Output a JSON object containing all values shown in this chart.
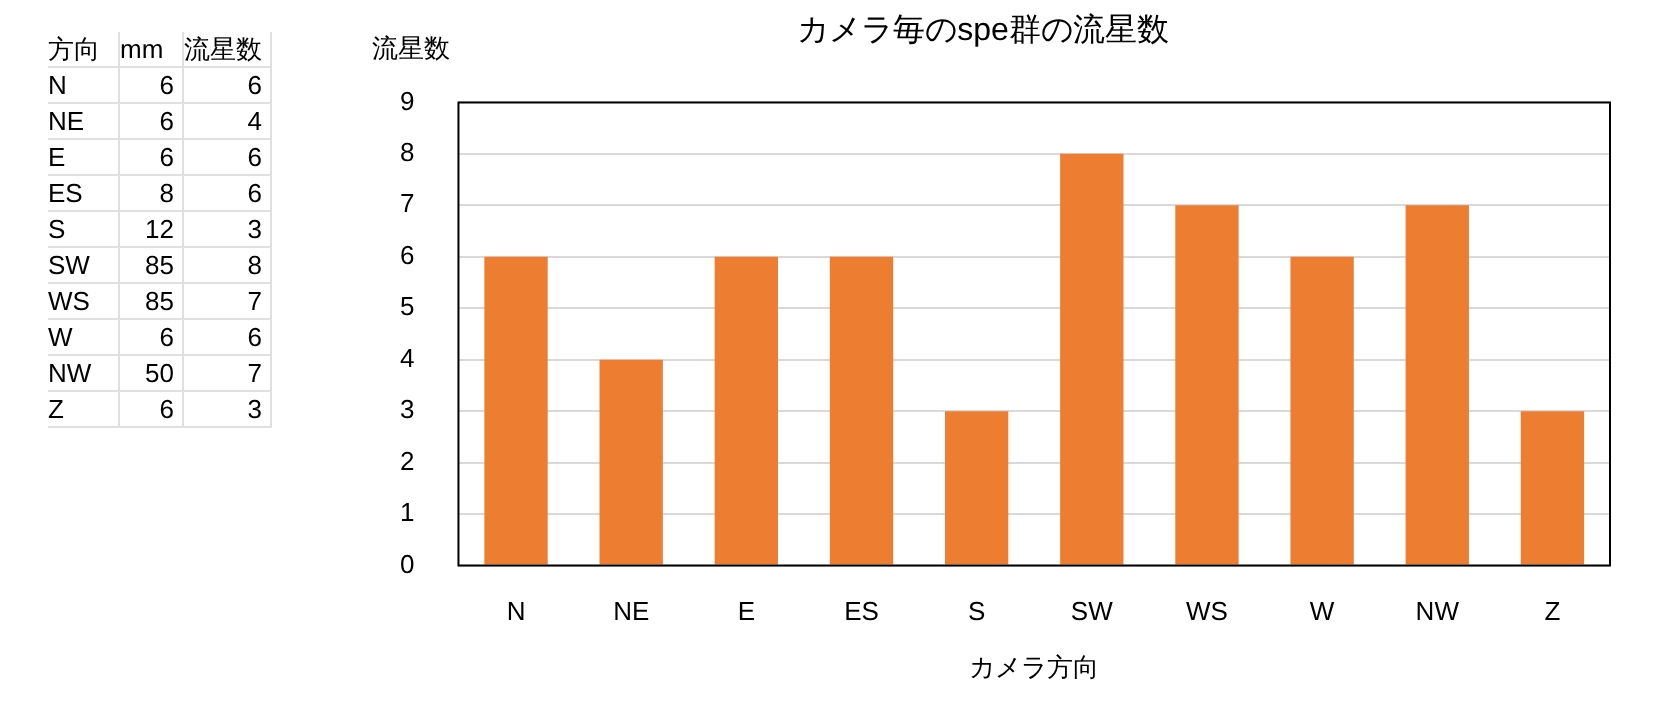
{
  "chart_data": [
    {
      "type": "other",
      "annotations": [
        "方向",
        "mm",
        "流星数",
        "N",
        "6",
        "6",
        "NE",
        "6",
        "4",
        "E",
        "6",
        "6",
        "ES",
        "8",
        "6",
        "S",
        "12",
        "3",
        "SW",
        "85",
        "8",
        "WS",
        "85",
        "7",
        "W",
        "6",
        "6",
        "NW",
        "50",
        "7",
        "Z",
        "6",
        "3"
      ]
    },
    {
      "type": "bar",
      "title": "カメラ毎のspe群の流星数",
      "xlabel": "カメラ方向",
      "ylabel": "流星数",
      "categories": [
        "N",
        "NE",
        "E",
        "ES",
        "S",
        "SW",
        "WS",
        "W",
        "NW",
        "Z"
      ],
      "series": [
        {
          "color": "#ed7d31",
          "values": [
            6,
            4,
            6,
            6,
            3,
            8,
            7,
            6,
            7,
            3
          ]
        }
      ],
      "ylim": [
        0,
        9
      ],
      "yticks": [
        0,
        1,
        2,
        3,
        4,
        5,
        6,
        7,
        8,
        9
      ],
      "grid": "y",
      "legend": false
    }
  ]
}
